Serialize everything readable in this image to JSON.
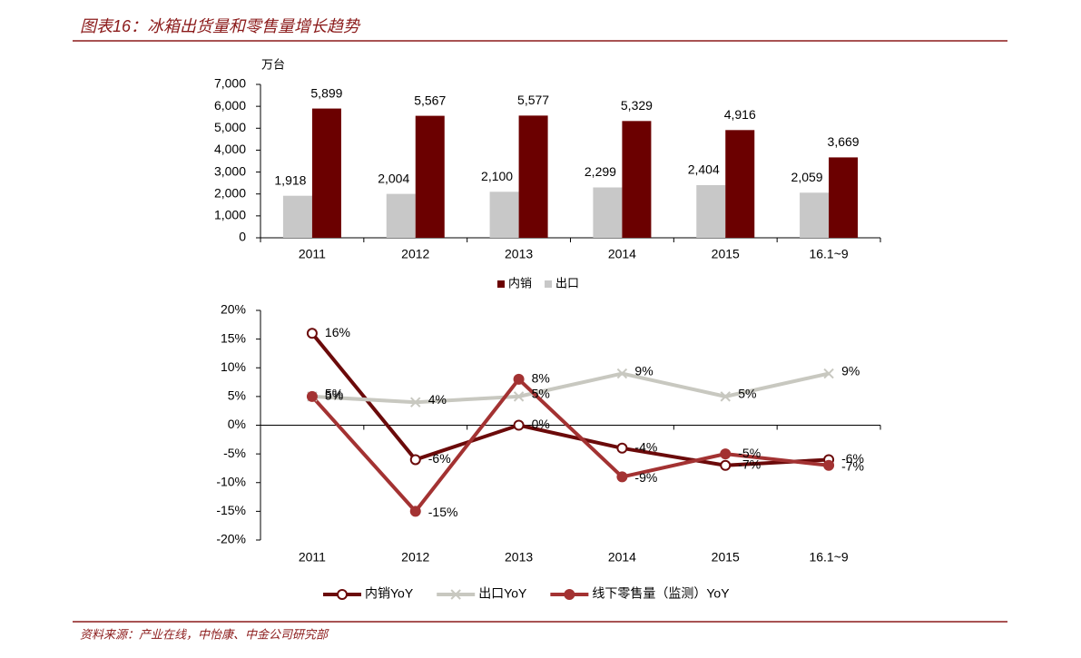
{
  "header": {
    "title": "图表16：冰箱出货量和零售量增长趋势"
  },
  "footer": {
    "source": "资料来源：产业在线，中怡康、中金公司研究部"
  },
  "chart_data": [
    {
      "type": "bar",
      "y_label": "万台",
      "categories": [
        "2011",
        "2012",
        "2013",
        "2014",
        "2015",
        "16.1~9"
      ],
      "series": [
        {
          "name": "内销",
          "color": "#6b0000",
          "values": [
            5899,
            5567,
            5577,
            5329,
            4916,
            3669
          ],
          "value_labels": [
            "5,899",
            "5,567",
            "5,577",
            "5,329",
            "4,916",
            "3,669"
          ]
        },
        {
          "name": "出口",
          "color": "#c8c8c8",
          "values": [
            1918,
            2004,
            2100,
            2299,
            2404,
            2059
          ],
          "value_labels": [
            "1,918",
            "2,004",
            "2,100",
            "2,299",
            "2,404",
            "2,059"
          ]
        }
      ],
      "ylim": [
        0,
        7000
      ],
      "yticks": [
        0,
        {
          "value": 1000,
          "label": "1,000"
        },
        {
          "value": 2000,
          "label": "2,000"
        },
        {
          "value": 3000,
          "label": "3,000"
        },
        {
          "value": 4000,
          "label": "4,000"
        },
        {
          "value": 5000,
          "label": "5,000"
        },
        {
          "value": 6000,
          "label": "6,000"
        },
        {
          "value": 7000,
          "label": "7,000"
        }
      ],
      "legend": "bottom"
    },
    {
      "type": "line",
      "categories": [
        "2011",
        "2012",
        "2013",
        "2014",
        "2015",
        "16.1~9"
      ],
      "series": [
        {
          "name": "内销YoY",
          "color": "#6b0a0a",
          "marker": "circle-open",
          "values": [
            16,
            -6,
            0,
            -4,
            -7,
            -6
          ],
          "value_labels": [
            "16%",
            "-6%",
            "0%",
            "-4%",
            "-7%",
            "-6%"
          ]
        },
        {
          "name": "出口YoY",
          "color": "#c8c8c0",
          "marker": "x",
          "values": [
            5,
            4,
            5,
            9,
            5,
            9
          ],
          "value_labels": [
            "5%",
            "4%",
            "5%",
            "9%",
            "5%",
            "9%"
          ]
        },
        {
          "name": "线下零售量（监测）YoY",
          "color": "#a33232",
          "marker": "circle",
          "values": [
            5,
            -15,
            8,
            -9,
            -5,
            -7
          ],
          "value_labels": [
            "5%",
            "-15%",
            "8%",
            "-9%",
            "-5%",
            "-7%"
          ]
        }
      ],
      "ylim": [
        -20,
        20
      ],
      "yticks": [
        {
          "value": -20,
          "label": "-20%"
        },
        {
          "value": -15,
          "label": "-15%"
        },
        {
          "value": -10,
          "label": "-10%"
        },
        {
          "value": -5,
          "label": "-5%"
        },
        {
          "value": 0,
          "label": "0%"
        },
        {
          "value": 5,
          "label": "5%"
        },
        {
          "value": 10,
          "label": "10%"
        },
        {
          "value": 15,
          "label": "15%"
        },
        {
          "value": 20,
          "label": "20%"
        }
      ],
      "legend": "bottom"
    }
  ]
}
